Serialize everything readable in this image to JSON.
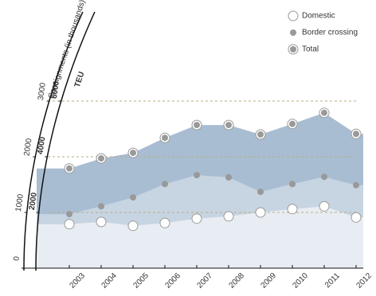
{
  "chart_data": {
    "type": "area",
    "y_title": "Consignments (in thousands)",
    "y2_title": "TEU",
    "categories": [
      "2003",
      "2004",
      "2005",
      "2006",
      "2007",
      "2008",
      "2009",
      "2010",
      "2011",
      "2012"
    ],
    "series": [
      {
        "name": "Total",
        "color": "#a9bdd2",
        "values": [
          1790,
          1970,
          2070,
          2340,
          2570,
          2570,
          2400,
          2590,
          2790,
          2410
        ]
      },
      {
        "name": "Border crossing",
        "color": "#c7d4e2",
        "values": [
          970,
          1110,
          1270,
          1510,
          1670,
          1630,
          1370,
          1510,
          1640,
          1490
        ]
      },
      {
        "name": "Domestic",
        "color": "#e8edf3",
        "values": [
          790,
          830,
          760,
          810,
          890,
          930,
          1000,
          1060,
          1110,
          910
        ]
      }
    ],
    "ylim": [
      0,
      3000
    ],
    "yticks": [
      0,
      1000,
      2000,
      3000
    ],
    "y2lim": [
      0,
      6000
    ],
    "y2ticks": [
      2000,
      4000,
      6000
    ],
    "grid": true,
    "legend": "top-right"
  }
}
